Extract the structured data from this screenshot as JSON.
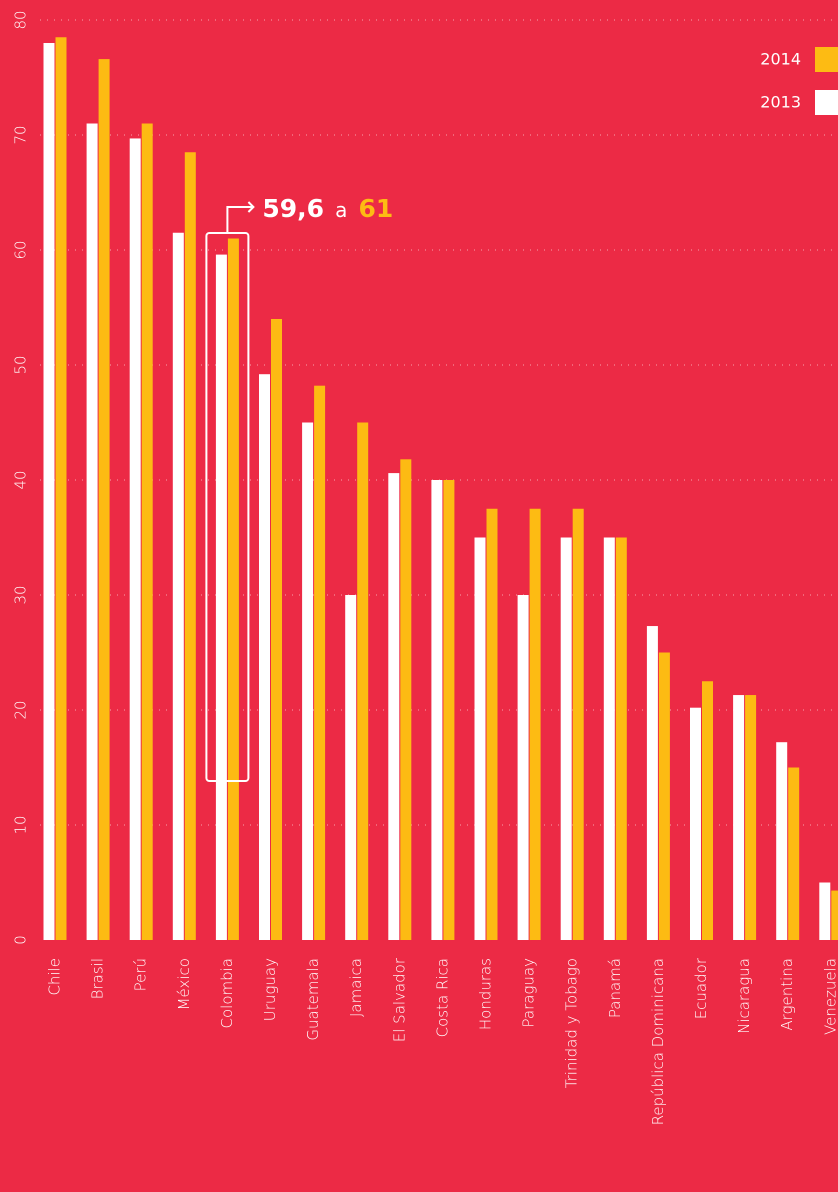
{
  "colors": {
    "background": "#ec2a45",
    "series_2013": "#ffffff",
    "series_2014": "#fdbb13",
    "grid": "#f7a3ad"
  },
  "chart_data": {
    "type": "bar",
    "orientation": "vertical",
    "title": "",
    "xlabel": "",
    "ylabel": "",
    "ylim": [
      0,
      80
    ],
    "yticks": [
      0,
      10,
      20,
      30,
      40,
      50,
      60,
      70,
      80
    ],
    "grid": true,
    "legend_position": "top-right",
    "categories": [
      "Chile",
      "Brasil",
      "Perú",
      "México",
      "Colombia",
      "Uruguay",
      "Guatemala",
      "Jamaica",
      "El Salvador",
      "Costa Rica",
      "Honduras",
      "Paraguay",
      "Trinidad y Tobago",
      "Panamá",
      "República Dominicana",
      "Ecuador",
      "Nicaragua",
      "Argentina",
      "Venezuela"
    ],
    "series": [
      {
        "name": "2013",
        "color": "#ffffff",
        "values": [
          78,
          71,
          69.7,
          61.5,
          59.6,
          49.2,
          45,
          30,
          40.6,
          40,
          35,
          30,
          35,
          35,
          27.3,
          20.2,
          21.3,
          17.2,
          5
        ]
      },
      {
        "name": "2014",
        "color": "#fdbb13",
        "values": [
          78.5,
          76.6,
          71,
          68.5,
          61,
          54,
          48.2,
          45,
          41.8,
          40,
          37.5,
          37.5,
          37.5,
          35,
          25,
          22.5,
          21.3,
          15,
          4.3
        ]
      }
    ],
    "highlight": {
      "category": "Colombia",
      "from": "59,6",
      "connector": "a",
      "to": "61"
    }
  }
}
